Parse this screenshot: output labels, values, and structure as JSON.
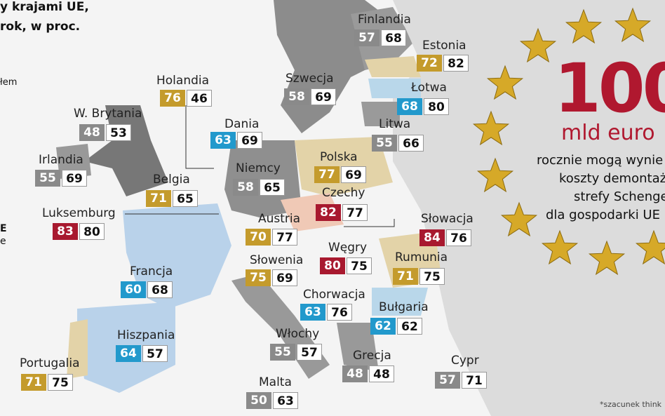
{
  "header": {
    "title_lines": [
      "y krajami UE,",
      "rok, w proc."
    ],
    "legend_fragments": [
      "łem",
      "E",
      "e"
    ]
  },
  "callout": {
    "amount": "100",
    "unit": "mld euro",
    "lines": [
      "rocznie mogą wynie",
      "koszty demontażu",
      "strefy Schengen",
      "dla gospodarki UE"
    ]
  },
  "footnote": "*szacunek think",
  "colors": {
    "gold": "#c49b2c",
    "gray": "#8a8a8a",
    "blue": "#2299cc",
    "red": "#a8192f"
  },
  "countries": [
    {
      "name": "Finlandia",
      "a": 57,
      "b": 68,
      "color": "gray"
    },
    {
      "name": "Estonia",
      "a": 72,
      "b": 82,
      "color": "gold"
    },
    {
      "name": "Holandia",
      "a": 76,
      "b": 46,
      "color": "gold"
    },
    {
      "name": "Szwecja",
      "a": 58,
      "b": 69,
      "color": "gray"
    },
    {
      "name": "Łotwa",
      "a": 68,
      "b": 80,
      "color": "blue"
    },
    {
      "name": "W. Brytania",
      "a": 48,
      "b": 53,
      "color": "gray"
    },
    {
      "name": "Dania",
      "a": 63,
      "b": 69,
      "color": "blue"
    },
    {
      "name": "Litwa",
      "a": 55,
      "b": 66,
      "color": "gray"
    },
    {
      "name": "Irlandia",
      "a": 55,
      "b": 69,
      "color": "gray"
    },
    {
      "name": "Polska",
      "a": 77,
      "b": 69,
      "color": "gold"
    },
    {
      "name": "Niemcy",
      "a": 58,
      "b": 65,
      "color": "gray"
    },
    {
      "name": "Belgia",
      "a": 71,
      "b": 65,
      "color": "gold"
    },
    {
      "name": "Czechy",
      "a": 82,
      "b": 77,
      "color": "red"
    },
    {
      "name": "Luksemburg",
      "a": 83,
      "b": 80,
      "color": "red"
    },
    {
      "name": "Słowacja",
      "a": 84,
      "b": 76,
      "color": "red"
    },
    {
      "name": "Austria",
      "a": 70,
      "b": 77,
      "color": "gold"
    },
    {
      "name": "Węgry",
      "a": 80,
      "b": 75,
      "color": "red"
    },
    {
      "name": "Rumunia",
      "a": 71,
      "b": 75,
      "color": "gold"
    },
    {
      "name": "Słowenia",
      "a": 75,
      "b": 69,
      "color": "gold"
    },
    {
      "name": "Francja",
      "a": 60,
      "b": 68,
      "color": "blue"
    },
    {
      "name": "Chorwacja",
      "a": 63,
      "b": 76,
      "color": "blue"
    },
    {
      "name": "Bułgaria",
      "a": 62,
      "b": 62,
      "color": "blue"
    },
    {
      "name": "Hiszpania",
      "a": 64,
      "b": 57,
      "color": "blue"
    },
    {
      "name": "Włochy",
      "a": 55,
      "b": 57,
      "color": "gray"
    },
    {
      "name": "Grecja",
      "a": 48,
      "b": 48,
      "color": "gray"
    },
    {
      "name": "Cypr",
      "a": 57,
      "b": 71,
      "color": "gray"
    },
    {
      "name": "Portugalia",
      "a": 71,
      "b": 75,
      "color": "gold"
    },
    {
      "name": "Malta",
      "a": 50,
      "b": 63,
      "color": "gray"
    }
  ]
}
